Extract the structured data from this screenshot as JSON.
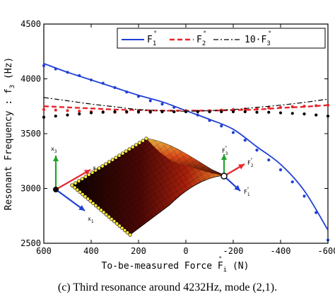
{
  "chart_data": {
    "type": "line",
    "title": "",
    "xlabel": "To-be-measured Force F",
    "xlabel_sup": "°",
    "xlabel_sub": "i",
    "xlabel_unit": " (N)",
    "ylabel": "Resonant Frequency : f",
    "ylabel_sub": "3",
    "ylabel_unit": " (Hz)",
    "xlim": [
      600,
      -600
    ],
    "ylim": [
      2500,
      4500
    ],
    "xticks": [
      600,
      400,
      200,
      0,
      -200,
      -400,
      -600
    ],
    "xtick_labels": [
      "600",
      "400",
      "200",
      "0",
      "-200",
      "-400",
      "-600"
    ],
    "yticks": [
      2500,
      3000,
      3500,
      4000,
      4500
    ],
    "ytick_labels": [
      "2500",
      "3000",
      "3500",
      "4000",
      "4500"
    ],
    "grid": false,
    "legend_position": "top-right",
    "legend": [
      {
        "label": "F",
        "sup": "°",
        "sub": "1",
        "color": "#1f3fd6",
        "dash": ""
      },
      {
        "label": "F",
        "sup": "°",
        "sub": "2",
        "color": "#e8252a",
        "dash": "7,4"
      },
      {
        "label": "10·F",
        "sup": "°",
        "sub": "3",
        "color": "#000000",
        "dash": "7,3,2,3"
      }
    ],
    "series": [
      {
        "key": "F1_model",
        "color": "#1f3fd6",
        "dash": "",
        "style": "line",
        "x": [
          600,
          500,
          400,
          300,
          200,
          100,
          0,
          -100,
          -200,
          -300,
          -400,
          -500,
          -600
        ],
        "y": [
          4140,
          4060,
          3990,
          3920,
          3850,
          3790,
          3710,
          3630,
          3540,
          3380,
          3220,
          2980,
          2620
        ]
      },
      {
        "key": "F1_measured",
        "color": "#1f3fd6",
        "style": "dots",
        "x": [
          600,
          550,
          500,
          450,
          400,
          350,
          300,
          250,
          200,
          150,
          100,
          50,
          0,
          -50,
          -100,
          -150,
          -200,
          -250,
          -300,
          -350,
          -400,
          -450,
          -500,
          -550,
          -600
        ],
        "y": [
          4120,
          4090,
          4060,
          4030,
          3990,
          3960,
          3920,
          3880,
          3840,
          3800,
          3770,
          3740,
          3710,
          3670,
          3620,
          3570,
          3510,
          3440,
          3350,
          3260,
          3170,
          3060,
          2930,
          2780,
          2530
        ]
      },
      {
        "key": "F2_model",
        "color": "#e8252a",
        "dash": "7,4",
        "style": "line",
        "x": [
          600,
          500,
          400,
          300,
          200,
          100,
          0,
          -100,
          -200,
          -300,
          -400,
          -500,
          -600
        ],
        "y": [
          3750,
          3740,
          3730,
          3720,
          3715,
          3710,
          3710,
          3710,
          3715,
          3720,
          3735,
          3745,
          3760
        ]
      },
      {
        "key": "F2_measured",
        "color": "#e8252a",
        "style": "dots",
        "x": [
          600,
          550,
          500,
          450,
          400,
          350,
          300,
          250,
          200,
          150,
          100,
          50,
          0,
          -50,
          -100,
          -150,
          -200,
          -250,
          -300,
          -350,
          -400,
          -450,
          -500,
          -550,
          -600
        ],
        "y": [
          3720,
          3715,
          3710,
          3705,
          3700,
          3700,
          3695,
          3695,
          3695,
          3695,
          3700,
          3700,
          3705,
          3705,
          3710,
          3715,
          3720,
          3725,
          3730,
          3735,
          3740,
          3745,
          3750,
          3755,
          3760
        ]
      },
      {
        "key": "F3_model",
        "color": "#000000",
        "dash": "7,3,2,3",
        "style": "line",
        "x": [
          600,
          500,
          400,
          300,
          200,
          100,
          0,
          -100,
          -200,
          -300,
          -400,
          -500,
          -600
        ],
        "y": [
          3830,
          3800,
          3770,
          3745,
          3720,
          3710,
          3705,
          3710,
          3720,
          3740,
          3760,
          3785,
          3815
        ]
      },
      {
        "key": "F3_measured",
        "color": "#000000",
        "style": "dots",
        "x": [
          600,
          550,
          500,
          450,
          400,
          350,
          300,
          250,
          200,
          150,
          100,
          50,
          0,
          -50,
          -100,
          -150,
          -200,
          -250,
          -300,
          -350,
          -400,
          -450,
          -500,
          -550,
          -600
        ],
        "y": [
          3650,
          3660,
          3670,
          3680,
          3690,
          3695,
          3700,
          3700,
          3700,
          3700,
          3700,
          3700,
          3700,
          3700,
          3700,
          3700,
          3700,
          3700,
          3695,
          3695,
          3690,
          3685,
          3680,
          3670,
          3660
        ]
      }
    ],
    "inset": {
      "axis_labels": {
        "x1": "x",
        "x1_sub": "1",
        "x2": "x",
        "x2_sub": "2",
        "x3": "x",
        "x3_sub": "3"
      },
      "force_labels": {
        "f1": "F",
        "f1_sub": "1",
        "f2": "F",
        "f2_sub": "2",
        "f3": "F",
        "f3_sub": "3",
        "sup": "°"
      }
    }
  },
  "caption": "(c) Third resonance around 4232Hz, mode (2,1)."
}
